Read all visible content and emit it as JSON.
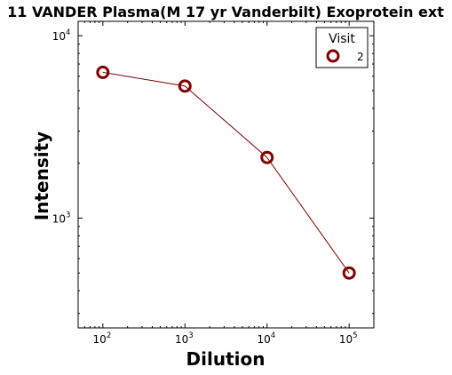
{
  "chart_data": {
    "type": "line",
    "title": "11 VANDER Plasma(M 17 yr Vanderbilt) Exoprotein ext",
    "xlabel": "Dilution",
    "ylabel": "Intensity",
    "xscale": "log",
    "yscale": "log",
    "xlim": [
      50,
      200000
    ],
    "ylim": [
      250,
      12000
    ],
    "x_ticks": [
      {
        "base": "10",
        "exp": "2",
        "value": 100
      },
      {
        "base": "10",
        "exp": "3",
        "value": 1000
      },
      {
        "base": "10",
        "exp": "4",
        "value": 10000
      },
      {
        "base": "10",
        "exp": "5",
        "value": 100000
      }
    ],
    "y_ticks": [
      {
        "base": "10",
        "exp": "3",
        "value": 1000
      },
      {
        "base": "10",
        "exp": "4",
        "value": 10000
      }
    ],
    "legend": {
      "title": "Visit",
      "position": "top-right"
    },
    "grid": false,
    "series": [
      {
        "name": "2",
        "color": "#800000",
        "marker": "hollow-circle",
        "x": [
          100,
          1000,
          10000,
          100000
        ],
        "y": [
          6300,
          5300,
          2150,
          500
        ]
      }
    ]
  }
}
